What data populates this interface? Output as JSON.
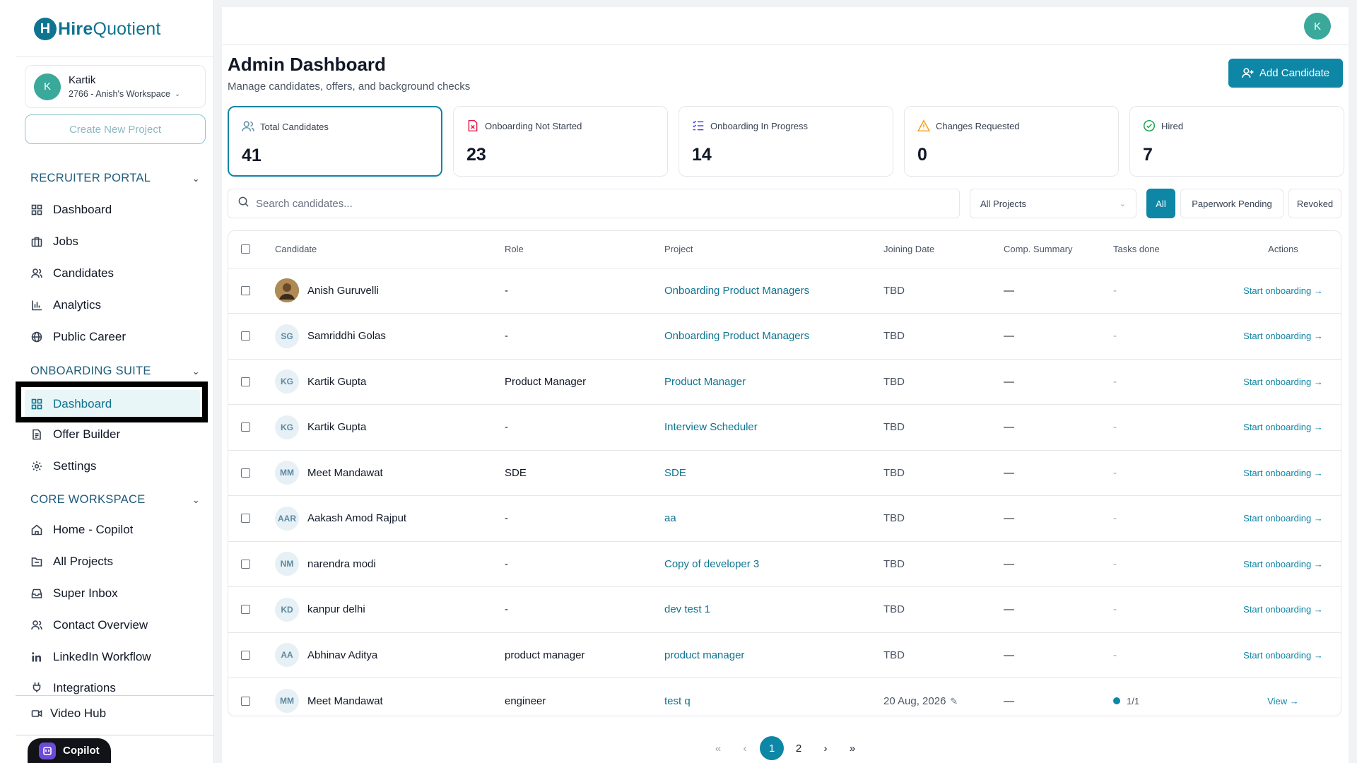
{
  "brand": {
    "mark": "H",
    "name_bold": "Hire",
    "name_rest": "Quotient"
  },
  "workspace": {
    "avatar": "K",
    "name": "Kartik",
    "sub": "2766 - Anish's Workspace"
  },
  "create_project_label": "Create New Project",
  "sections": {
    "recruiter": "RECRUITER PORTAL",
    "onboarding": "ONBOARDING SUITE",
    "core": "CORE WORKSPACE"
  },
  "nav": {
    "recruiter": [
      {
        "label": "Dashboard",
        "icon": "grid-icon"
      },
      {
        "label": "Jobs",
        "icon": "briefcase-icon"
      },
      {
        "label": "Candidates",
        "icon": "users-icon"
      },
      {
        "label": "Analytics",
        "icon": "bar-chart-icon"
      },
      {
        "label": "Public Career",
        "icon": "globe-icon"
      }
    ],
    "onboarding": [
      {
        "label": "Dashboard",
        "icon": "grid-icon"
      },
      {
        "label": "Offer Builder",
        "icon": "document-icon"
      },
      {
        "label": "Settings",
        "icon": "gear-icon"
      }
    ],
    "core": [
      {
        "label": "Home - Copilot",
        "icon": "home-icon"
      },
      {
        "label": "All Projects",
        "icon": "folder-icon"
      },
      {
        "label": "Super Inbox",
        "icon": "inbox-icon"
      },
      {
        "label": "Contact Overview",
        "icon": "users-icon"
      },
      {
        "label": "LinkedIn Workflow",
        "icon": "linkedin-icon"
      },
      {
        "label": "Integrations",
        "icon": "plug-icon"
      }
    ],
    "video_hub": {
      "label": "Video Hub",
      "icon": "video-icon"
    }
  },
  "copilot_label": "Copilot",
  "user_avatar": "K",
  "header": {
    "title": "Admin Dashboard",
    "subtitle": "Manage candidates, offers, and background checks",
    "add_candidate": "Add Candidate"
  },
  "stats": [
    {
      "label": "Total Candidates",
      "value": "41",
      "icon": "users-icon",
      "color": "#5b8aa3"
    },
    {
      "label": "Onboarding Not Started",
      "value": "23",
      "icon": "file-x-icon",
      "color": "#e11d48"
    },
    {
      "label": "Onboarding In Progress",
      "value": "14",
      "icon": "list-check-icon",
      "color": "#4f46e5"
    },
    {
      "label": "Changes Requested",
      "value": "0",
      "icon": "warning-icon",
      "color": "#f59e0b"
    },
    {
      "label": "Hired",
      "value": "7",
      "icon": "check-circle-icon",
      "color": "#16a34a"
    }
  ],
  "search": {
    "placeholder": "Search candidates..."
  },
  "project_filter": {
    "selected": "All Projects"
  },
  "filters": [
    "All",
    "Paperwork Pending",
    "Revoked"
  ],
  "table": {
    "columns": [
      "Candidate",
      "Role",
      "Project",
      "Joining Date",
      "Comp. Summary",
      "Tasks done",
      "Actions"
    ],
    "rows": [
      {
        "initials": "",
        "photo": true,
        "name": "Anish Guruvelli",
        "role": "-",
        "project": "Onboarding Product Managers",
        "date": "TBD",
        "comp": "—",
        "tasks": "-",
        "action": "Start onboarding →"
      },
      {
        "initials": "SG",
        "name": "Samriddhi Golas",
        "role": "-",
        "project": "Onboarding Product Managers",
        "date": "TBD",
        "comp": "—",
        "tasks": "-",
        "action": "Start onboarding →"
      },
      {
        "initials": "KG",
        "name": "Kartik Gupta",
        "role": "Product Manager",
        "project": "Product Manager",
        "date": "TBD",
        "comp": "—",
        "tasks": "-",
        "action": "Start onboarding →"
      },
      {
        "initials": "KG",
        "name": "Kartik Gupta",
        "role": "-",
        "project": "Interview Scheduler",
        "date": "TBD",
        "comp": "—",
        "tasks": "-",
        "action": "Start onboarding →"
      },
      {
        "initials": "MM",
        "name": "Meet Mandawat",
        "role": "SDE",
        "project": "SDE",
        "date": "TBD",
        "comp": "—",
        "tasks": "-",
        "action": "Start onboarding →"
      },
      {
        "initials": "AAR",
        "name": "Aakash Amod Rajput",
        "role": "-",
        "project": "aa",
        "date": "TBD",
        "comp": "—",
        "tasks": "-",
        "action": "Start onboarding →"
      },
      {
        "initials": "NM",
        "name": "narendra modi",
        "role": "-",
        "project": "Copy of developer 3",
        "date": "TBD",
        "comp": "—",
        "tasks": "-",
        "action": "Start onboarding →"
      },
      {
        "initials": "KD",
        "name": "kanpur delhi",
        "role": "-",
        "project": "dev test 1",
        "date": "TBD",
        "comp": "—",
        "tasks": "-",
        "action": "Start onboarding →"
      },
      {
        "initials": "AA",
        "name": "Abhinav Aditya",
        "role": "product manager",
        "project": "product manager",
        "date": "TBD",
        "comp": "—",
        "tasks": "-",
        "action": "Start onboarding →"
      },
      {
        "initials": "MM",
        "name": "Meet Mandawat",
        "role": "engineer",
        "project": "test q",
        "date": "20 Aug, 2026",
        "editable_date": true,
        "comp": "—",
        "tasks": "1/1",
        "tasks_dot": true,
        "action": "View →"
      }
    ]
  },
  "pagination": {
    "pages": [
      "1",
      "2"
    ],
    "current": "1"
  }
}
